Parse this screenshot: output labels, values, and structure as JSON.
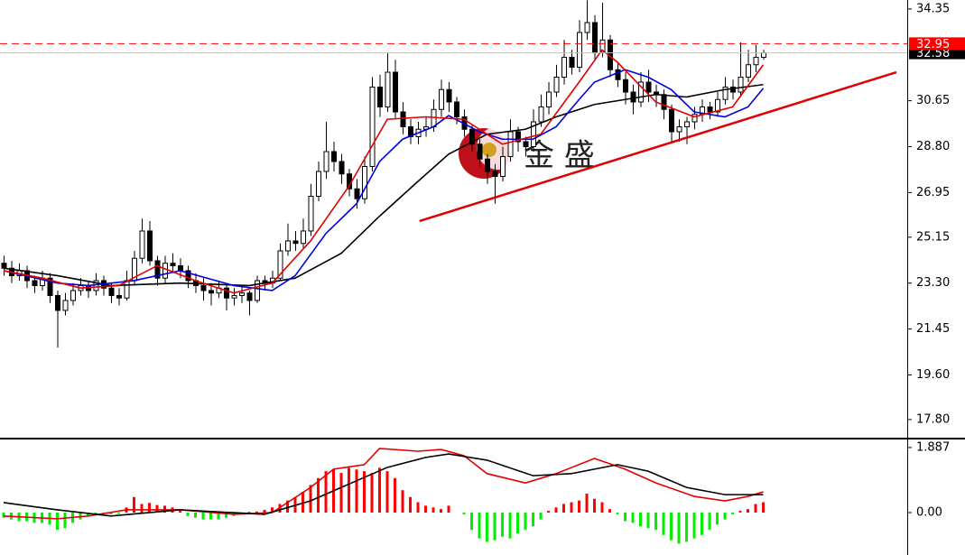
{
  "chart_data": [
    {
      "type": "candlestick",
      "xlim": [
        -0.47,
        117.76
      ],
      "ylim": [
        17.07,
        34.71
      ],
      "yticks": [
        34.35,
        30.65,
        {
          "value": 28.8,
          "label": "28.80"
        },
        26.95,
        25.15,
        {
          "value": 23.3,
          "label": "23.30"
        },
        21.45,
        {
          "value": 19.6,
          "label": "19.60"
        },
        {
          "value": 17.8,
          "label": "17.80"
        }
      ],
      "up_color": "#ffffff",
      "down_color": "#000000",
      "ohlc": [
        [
          24.1,
          24.4,
          23.6,
          23.9
        ],
        [
          23.9,
          24.2,
          23.3,
          23.6
        ],
        [
          23.6,
          24.1,
          23.4,
          23.8
        ],
        [
          23.8,
          24.0,
          23.1,
          23.4
        ],
        [
          23.4,
          23.6,
          22.9,
          23.2
        ],
        [
          23.2,
          23.8,
          23.0,
          23.5
        ],
        [
          23.5,
          23.7,
          22.5,
          22.8
        ],
        [
          22.8,
          23.0,
          20.7,
          22.2
        ],
        [
          22.2,
          22.9,
          22.0,
          22.6
        ],
        [
          22.6,
          23.3,
          22.4,
          23.0
        ],
        [
          23.0,
          23.5,
          22.8,
          23.2
        ],
        [
          23.2,
          23.4,
          22.7,
          23.0
        ],
        [
          23.0,
          23.7,
          22.8,
          23.4
        ],
        [
          23.4,
          23.6,
          22.8,
          23.1
        ],
        [
          23.1,
          23.3,
          22.5,
          22.8
        ],
        [
          22.8,
          23.1,
          22.4,
          22.7
        ],
        [
          22.7,
          23.8,
          22.6,
          23.4
        ],
        [
          23.4,
          24.6,
          23.2,
          24.3
        ],
        [
          24.3,
          25.9,
          24.1,
          25.4
        ],
        [
          25.4,
          25.8,
          24.0,
          24.2
        ],
        [
          24.2,
          24.4,
          23.2,
          23.5
        ],
        [
          23.5,
          24.4,
          23.3,
          24.1
        ],
        [
          24.1,
          24.5,
          23.7,
          24.0
        ],
        [
          24.0,
          24.3,
          23.5,
          23.8
        ],
        [
          23.8,
          24.0,
          23.1,
          23.4
        ],
        [
          23.4,
          23.7,
          22.9,
          23.2
        ],
        [
          23.2,
          23.5,
          22.6,
          23.0
        ],
        [
          23.0,
          23.3,
          22.4,
          22.9
        ],
        [
          22.9,
          23.4,
          22.7,
          23.1
        ],
        [
          23.1,
          23.2,
          22.2,
          22.7
        ],
        [
          22.7,
          23.1,
          22.4,
          22.8
        ],
        [
          22.8,
          23.2,
          22.5,
          22.9
        ],
        [
          22.9,
          23.0,
          22.0,
          22.6
        ],
        [
          22.6,
          23.6,
          22.5,
          23.4
        ],
        [
          23.4,
          23.6,
          23.0,
          23.3
        ],
        [
          23.3,
          23.8,
          23.1,
          23.5
        ],
        [
          23.5,
          24.9,
          23.4,
          24.6
        ],
        [
          24.6,
          25.7,
          24.4,
          25.0
        ],
        [
          25.0,
          25.4,
          24.6,
          24.9
        ],
        [
          24.9,
          25.9,
          24.7,
          25.4
        ],
        [
          25.4,
          27.3,
          25.2,
          26.8
        ],
        [
          26.8,
          28.2,
          26.6,
          27.8
        ],
        [
          27.8,
          29.8,
          27.5,
          28.6
        ],
        [
          28.6,
          29.0,
          27.8,
          28.2
        ],
        [
          28.2,
          28.5,
          27.3,
          27.7
        ],
        [
          27.7,
          27.9,
          26.8,
          27.1
        ],
        [
          27.1,
          27.5,
          26.3,
          26.7
        ],
        [
          26.7,
          28.4,
          26.5,
          28.0
        ],
        [
          28.0,
          31.6,
          27.8,
          31.2
        ],
        [
          31.2,
          31.7,
          30.0,
          30.4
        ],
        [
          30.4,
          32.6,
          30.2,
          31.8
        ],
        [
          31.8,
          32.3,
          29.9,
          30.2
        ],
        [
          30.2,
          30.6,
          29.3,
          29.6
        ],
        [
          29.6,
          29.9,
          28.9,
          29.2
        ],
        [
          29.2,
          29.8,
          28.9,
          29.5
        ],
        [
          29.5,
          30.0,
          29.2,
          29.6
        ],
        [
          29.6,
          30.7,
          29.4,
          30.3
        ],
        [
          30.3,
          31.5,
          30.0,
          31.1
        ],
        [
          31.1,
          31.4,
          30.2,
          30.6
        ],
        [
          30.6,
          30.8,
          29.7,
          30.0
        ],
        [
          30.0,
          30.3,
          29.2,
          29.5
        ],
        [
          29.5,
          29.7,
          28.6,
          28.9
        ],
        [
          28.9,
          29.1,
          28.0,
          28.3
        ],
        [
          28.3,
          28.5,
          27.3,
          27.8
        ],
        [
          27.8,
          28.1,
          26.5,
          27.6
        ],
        [
          27.6,
          28.8,
          27.4,
          28.4
        ],
        [
          28.4,
          29.9,
          28.2,
          29.4
        ],
        [
          29.4,
          29.6,
          28.6,
          29.0
        ],
        [
          29.0,
          29.2,
          28.4,
          28.8
        ],
        [
          28.8,
          30.3,
          28.6,
          29.8
        ],
        [
          29.8,
          30.9,
          29.6,
          30.4
        ],
        [
          30.4,
          31.4,
          30.1,
          31.0
        ],
        [
          31.0,
          32.1,
          30.8,
          31.6
        ],
        [
          31.6,
          33.1,
          31.3,
          32.4
        ],
        [
          32.4,
          32.7,
          31.7,
          32.0
        ],
        [
          32.0,
          33.9,
          31.8,
          33.4
        ],
        [
          33.4,
          34.7,
          33.1,
          33.8
        ],
        [
          33.8,
          34.1,
          32.3,
          32.6
        ],
        [
          32.6,
          34.6,
          32.4,
          33.1
        ],
        [
          33.1,
          33.3,
          31.6,
          31.9
        ],
        [
          31.9,
          32.2,
          31.2,
          31.5
        ],
        [
          31.5,
          31.8,
          30.5,
          31.0
        ],
        [
          31.0,
          31.3,
          30.1,
          30.6
        ],
        [
          30.6,
          31.8,
          30.4,
          31.4
        ],
        [
          31.4,
          31.9,
          30.6,
          31.0
        ],
        [
          31.0,
          31.3,
          30.4,
          30.9
        ],
        [
          30.9,
          31.1,
          29.9,
          30.3
        ],
        [
          30.3,
          30.5,
          29.0,
          29.4
        ],
        [
          29.4,
          29.9,
          29.0,
          29.6
        ],
        [
          29.6,
          30.0,
          28.9,
          29.8
        ],
        [
          29.8,
          30.4,
          29.5,
          30.1
        ],
        [
          30.1,
          30.7,
          29.8,
          30.4
        ],
        [
          30.4,
          30.6,
          29.9,
          30.2
        ],
        [
          30.2,
          31.0,
          30.0,
          30.7
        ],
        [
          30.7,
          31.6,
          30.5,
          31.2
        ],
        [
          31.2,
          31.5,
          30.7,
          31.0
        ],
        [
          31.0,
          33.0,
          30.8,
          31.6
        ],
        [
          31.6,
          32.7,
          31.4,
          32.1
        ],
        [
          32.1,
          32.9,
          31.8,
          32.4
        ],
        [
          32.4,
          32.7,
          32.3,
          32.58
        ]
      ],
      "ma": [
        {
          "color": "#000000",
          "x": [
            0,
            7,
            14,
            23,
            32,
            38,
            44,
            49,
            54,
            58,
            63,
            68,
            72,
            77,
            81,
            85,
            89,
            94,
            99
          ],
          "values": [
            23.9,
            23.6,
            23.2,
            23.3,
            23.2,
            23.5,
            24.5,
            26.0,
            27.4,
            28.5,
            29.3,
            29.5,
            30.0,
            30.5,
            30.7,
            30.9,
            30.8,
            31.1,
            31.3
          ]
        },
        {
          "color": "#0000dd",
          "x": [
            0,
            7,
            11,
            17,
            23,
            30,
            35,
            38,
            42,
            46,
            49,
            52,
            56,
            58,
            62,
            65,
            69,
            72,
            75,
            77,
            81,
            84,
            87,
            90,
            94,
            97,
            99
          ],
          "values": [
            23.8,
            23.3,
            23.2,
            23.4,
            23.8,
            23.2,
            23.0,
            23.6,
            25.3,
            26.5,
            28.2,
            29.1,
            29.6,
            30.05,
            29.4,
            29.1,
            29.1,
            29.6,
            30.7,
            31.4,
            31.9,
            31.6,
            31.1,
            30.2,
            30.0,
            30.4,
            31.15
          ]
        },
        {
          "color": "#e00000",
          "x": [
            0,
            5,
            10,
            15,
            20,
            25,
            30,
            35,
            40,
            45,
            50,
            55,
            60,
            65,
            70,
            75,
            78,
            80,
            85,
            90,
            95,
            99
          ],
          "values": [
            23.8,
            23.5,
            23.1,
            23.2,
            24.0,
            23.4,
            22.9,
            23.3,
            25.0,
            27.2,
            29.9,
            30.0,
            29.9,
            28.9,
            29.3,
            31.4,
            32.7,
            32.2,
            30.6,
            30.0,
            30.4,
            32.1
          ]
        }
      ],
      "trendline": {
        "color": "#e00000",
        "x": [
          54.2,
          116.35
        ],
        "values": [
          25.8,
          31.8
        ]
      },
      "levels": [
        {
          "value": 32.58,
          "color": "#000000",
          "line": "#c0c0c0"
        },
        {
          "value": 32.95,
          "color": "#ff0000",
          "line": "#ff0000"
        }
      ],
      "watermark": "金 盛"
    },
    {
      "type": "macd",
      "xlim": [
        -0.47,
        117.76
      ],
      "ylim": [
        -1.23,
        2.12
      ],
      "yticks": [
        1.887,
        {
          "value": 0,
          "label": "0.00"
        }
      ],
      "up_color": "#ff0000",
      "down_color": "#00ee00",
      "values": [
        -0.15,
        -0.2,
        -0.25,
        -0.25,
        -0.3,
        -0.3,
        -0.35,
        -0.5,
        -0.45,
        -0.3,
        -0.2,
        -0.1,
        -0.05,
        -0.05,
        -0.05,
        -0.03,
        0.15,
        0.45,
        0.25,
        0.28,
        0.22,
        0.2,
        0.15,
        0.05,
        -0.1,
        -0.15,
        -0.2,
        -0.2,
        -0.2,
        -0.15,
        -0.1,
        -0.05,
        0.02,
        0.03,
        0.08,
        0.15,
        0.25,
        0.35,
        0.45,
        0.6,
        0.8,
        1.0,
        1.2,
        1.25,
        1.15,
        1.3,
        1.25,
        1.2,
        1.15,
        1.3,
        1.2,
        1.0,
        0.65,
        0.45,
        0.3,
        0.2,
        0.15,
        0.1,
        0.2,
        0.0,
        -0.05,
        -0.5,
        -0.75,
        -0.85,
        -0.8,
        -0.7,
        -0.75,
        -0.6,
        -0.5,
        -0.4,
        -0.2,
        0.05,
        0.15,
        0.25,
        0.3,
        0.35,
        0.55,
        0.4,
        0.3,
        0.1,
        -0.05,
        -0.25,
        -0.3,
        -0.4,
        -0.45,
        -0.5,
        -0.65,
        -0.8,
        -0.9,
        -0.85,
        -0.75,
        -0.65,
        -0.5,
        -0.35,
        -0.2,
        -0.05,
        0.05,
        0.1,
        0.25,
        0.3
      ],
      "lines": [
        {
          "color": "#e00000",
          "x": [
            0,
            7,
            11,
            16,
            23,
            30,
            35,
            40,
            43,
            47,
            49,
            54,
            57,
            60,
            63,
            68,
            72,
            77,
            81,
            85,
            90,
            94,
            97,
            99
          ],
          "values": [
            -0.1,
            -0.18,
            -0.1,
            0.08,
            0.08,
            -0.05,
            0,
            0.73,
            1.26,
            1.39,
            1.86,
            1.78,
            1.83,
            1.65,
            1.13,
            0.86,
            1.13,
            1.57,
            1.26,
            0.86,
            0.47,
            0.34,
            0.47,
            0.6
          ]
        },
        {
          "color": "#000000",
          "x": [
            0,
            7,
            14,
            23,
            34,
            40,
            44,
            50,
            55,
            58,
            63,
            69,
            74,
            80,
            84,
            89,
            94,
            99
          ],
          "values": [
            0.29,
            0.08,
            -0.1,
            0.08,
            -0.05,
            0.34,
            0.73,
            1.31,
            1.6,
            1.7,
            1.52,
            1.07,
            1.13,
            1.39,
            1.2,
            0.73,
            0.52,
            0.52
          ]
        }
      ]
    }
  ]
}
